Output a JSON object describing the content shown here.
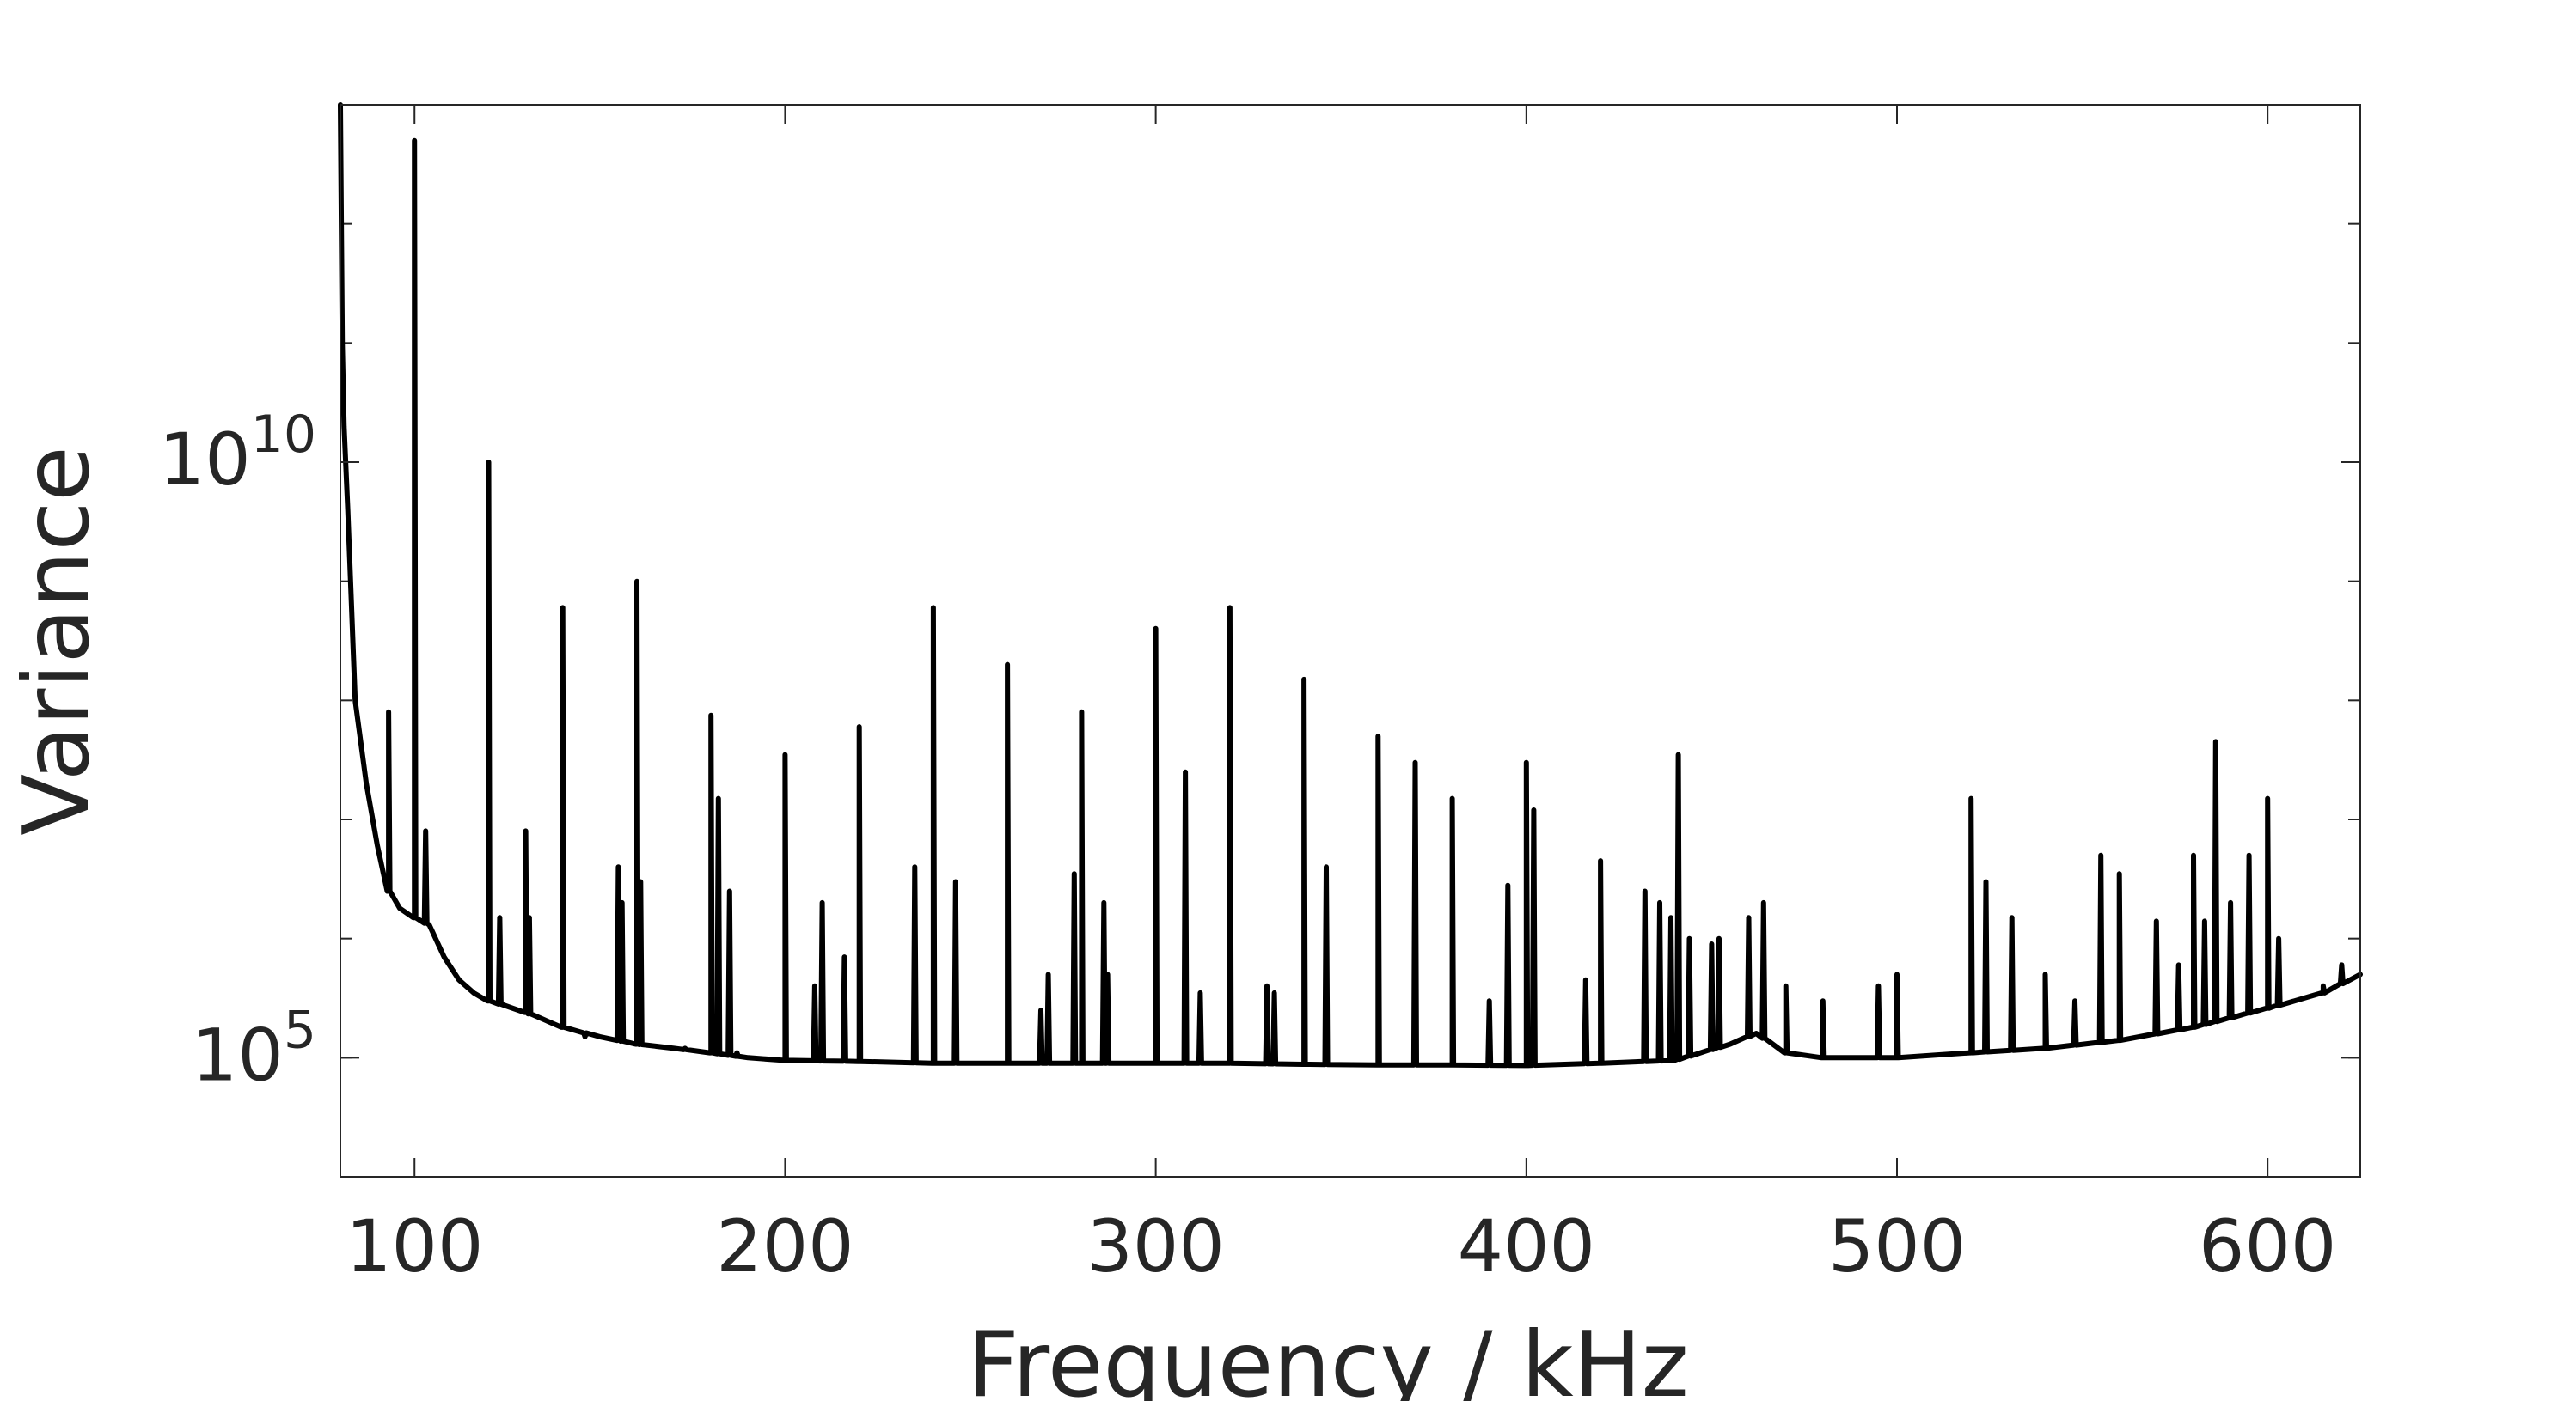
{
  "chart_data": {
    "type": "line",
    "title": "",
    "xlabel": "Frequency / kHz",
    "ylabel": "Variance",
    "x_scale": "linear",
    "y_scale": "log",
    "xlim": [
      80,
      625
    ],
    "ylim": [
      10000,
      10000000000000
    ],
    "x_ticks": [
      100,
      200,
      300,
      400,
      500,
      600
    ],
    "x_tick_labels": [
      "100",
      "200",
      "300",
      "400",
      "500",
      "600"
    ],
    "y_ticks": [
      100000,
      10000000000
    ],
    "y_tick_labels": [
      {
        "base": "10",
        "exp": "5"
      },
      {
        "base": "10",
        "exp": "10"
      }
    ],
    "grid": false,
    "box": true,
    "line_color": "#000000",
    "axis_color": "#262626",
    "series": [
      {
        "baseline": [
          [
            80,
            10000000000000
          ],
          [
            80.5,
            100000000000
          ],
          [
            81,
            20000000000
          ],
          [
            82,
            4000000000
          ],
          [
            84,
            100000000
          ],
          [
            87,
            20000000
          ],
          [
            90,
            6000000
          ],
          [
            93,
            2500000
          ],
          [
            96,
            1800000
          ],
          [
            100,
            1500000
          ],
          [
            104,
            1300000
          ],
          [
            108,
            700000
          ],
          [
            112,
            450000
          ],
          [
            116,
            350000
          ],
          [
            120,
            300000
          ],
          [
            125,
            270000
          ],
          [
            130,
            240000
          ],
          [
            140,
            180000
          ],
          [
            150,
            150000
          ],
          [
            160,
            130000
          ],
          [
            170,
            120000
          ],
          [
            180,
            110000
          ],
          [
            190,
            100000
          ],
          [
            200,
            95000
          ],
          [
            220,
            93000
          ],
          [
            240,
            90000
          ],
          [
            260,
            90000
          ],
          [
            280,
            90000
          ],
          [
            300,
            90000
          ],
          [
            320,
            90000
          ],
          [
            340,
            88000
          ],
          [
            360,
            87000
          ],
          [
            380,
            87000
          ],
          [
            400,
            86000
          ],
          [
            420,
            90000
          ],
          [
            440,
            95000
          ],
          [
            455,
            130000
          ],
          [
            462,
            160000
          ],
          [
            470,
            110000
          ],
          [
            480,
            100000
          ],
          [
            500,
            100000
          ],
          [
            520,
            110000
          ],
          [
            540,
            120000
          ],
          [
            560,
            140000
          ],
          [
            580,
            180000
          ],
          [
            600,
            260000
          ],
          [
            615,
            350000
          ],
          [
            625,
            500000
          ]
        ],
        "peaks": [
          [
            93,
            80000000
          ],
          [
            100,
            5000000000000
          ],
          [
            103,
            8000000
          ],
          [
            120,
            10000000000
          ],
          [
            123,
            1500000
          ],
          [
            130,
            8000000
          ],
          [
            131,
            1500000
          ],
          [
            140,
            600000000
          ],
          [
            146,
            150000
          ],
          [
            155,
            4000000
          ],
          [
            156,
            2000000
          ],
          [
            160,
            1000000000
          ],
          [
            161,
            3000000
          ],
          [
            173,
            120000
          ],
          [
            180,
            75000000
          ],
          [
            182,
            15000000
          ],
          [
            185,
            2500000
          ],
          [
            187,
            110000
          ],
          [
            200,
            35000000
          ],
          [
            208,
            400000
          ],
          [
            210,
            2000000
          ],
          [
            216,
            700000
          ],
          [
            220,
            60000000
          ],
          [
            235,
            4000000
          ],
          [
            240,
            600000000
          ],
          [
            246,
            3000000
          ],
          [
            260,
            200000000
          ],
          [
            269,
            250000
          ],
          [
            271,
            500000
          ],
          [
            278,
            3500000
          ],
          [
            280,
            80000000
          ],
          [
            286,
            2000000
          ],
          [
            287,
            500000
          ],
          [
            300,
            400000000
          ],
          [
            308,
            25000000
          ],
          [
            312,
            350000
          ],
          [
            320,
            600000000
          ],
          [
            330,
            400000
          ],
          [
            332,
            350000
          ],
          [
            340,
            150000000
          ],
          [
            346,
            4000000
          ],
          [
            360,
            50000000
          ],
          [
            370,
            30000000
          ],
          [
            380,
            15000000
          ],
          [
            390,
            300000
          ],
          [
            395,
            2800000
          ],
          [
            400,
            30000000
          ],
          [
            402,
            12000000
          ],
          [
            416,
            450000
          ],
          [
            420,
            4500000
          ],
          [
            432,
            2500000
          ],
          [
            436,
            2000000
          ],
          [
            439,
            1500000
          ],
          [
            441,
            35000000
          ],
          [
            444,
            1000000
          ],
          [
            450,
            900000
          ],
          [
            452,
            1000000
          ],
          [
            460,
            1500000
          ],
          [
            464,
            2000000
          ],
          [
            470,
            400000
          ],
          [
            480,
            300000
          ],
          [
            495,
            400000
          ],
          [
            500,
            500000
          ],
          [
            520,
            15000000
          ],
          [
            524,
            3000000
          ],
          [
            531,
            1500000
          ],
          [
            540,
            500000
          ],
          [
            548,
            300000
          ],
          [
            555,
            5000000
          ],
          [
            560,
            3500000
          ],
          [
            570,
            1400000
          ],
          [
            576,
            600000
          ],
          [
            580,
            5000000
          ],
          [
            583,
            1400000
          ],
          [
            586,
            45000000
          ],
          [
            590,
            2000000
          ],
          [
            595,
            5000000
          ],
          [
            600,
            15000000
          ],
          [
            603,
            1000000
          ],
          [
            615,
            400000
          ],
          [
            620,
            600000
          ]
        ]
      }
    ]
  }
}
